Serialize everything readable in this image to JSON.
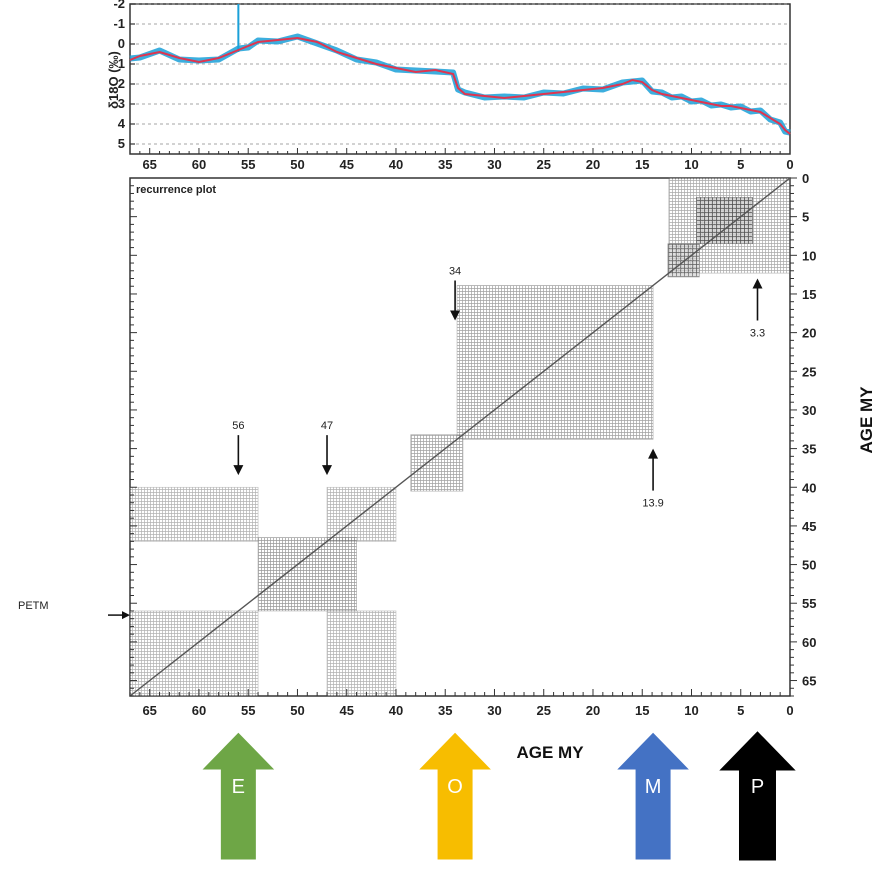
{
  "chart_data": [
    {
      "type": "line",
      "panel": "top",
      "ylabel": "δ18O (‰)",
      "x_axis": "Age (My), decreasing to the right",
      "xlim": [
        67,
        0
      ],
      "ylim": [
        5.5,
        -2
      ],
      "y_ticks": [
        -2,
        -1,
        0,
        1,
        2,
        3,
        4,
        5
      ],
      "x_ticks": [
        65,
        60,
        55,
        50,
        45,
        40,
        35,
        30,
        25,
        20,
        15,
        10,
        5,
        0
      ],
      "grid": "horizontal dashed",
      "series": [
        {
          "color": "#e0344f",
          "x": [
            67,
            66,
            64,
            62,
            60,
            58,
            56,
            55,
            54,
            52,
            50,
            48,
            46,
            44,
            42,
            40,
            38,
            36,
            34.2,
            33.7,
            33,
            31,
            29,
            27,
            25,
            23,
            21,
            19,
            17,
            16,
            15,
            14,
            13,
            12,
            11,
            10,
            9,
            8,
            7,
            6,
            5,
            4,
            3,
            2,
            1,
            0.5,
            0
          ],
          "values": [
            0.8,
            0.6,
            0.4,
            0.7,
            0.9,
            0.7,
            0.3,
            0.1,
            -0.1,
            -0.2,
            -0.3,
            -0.1,
            0.4,
            0.7,
            1.0,
            1.2,
            1.4,
            1.3,
            1.5,
            2.2,
            2.5,
            2.6,
            2.7,
            2.6,
            2.5,
            2.4,
            2.3,
            2.2,
            2.0,
            1.8,
            1.9,
            2.3,
            2.5,
            2.6,
            2.7,
            2.8,
            2.9,
            3.0,
            3.1,
            3.1,
            3.2,
            3.3,
            3.4,
            3.7,
            4.0,
            4.3,
            4.5
          ]
        },
        {
          "color": "#1aa0d8",
          "role": "raw data envelope",
          "spike": {
            "x": 56,
            "value": -2
          }
        }
      ]
    },
    {
      "type": "heatmap",
      "panel": "bottom",
      "title": "recurrence plot",
      "xlabel": "AGE MY",
      "ylabel": "AGE MY",
      "xlim": [
        67,
        0
      ],
      "ylim": [
        0,
        67
      ],
      "x_ticks": [
        65,
        60,
        55,
        50,
        45,
        40,
        35,
        30,
        25,
        20,
        15,
        10,
        5,
        0
      ],
      "y_ticks": [
        0,
        5,
        10,
        15,
        20,
        25,
        30,
        35,
        40,
        45,
        50,
        55,
        60,
        65
      ],
      "blocks": [
        {
          "x0": 12.3,
          "x1": 0,
          "y0": 0,
          "y1": 12.3,
          "density": 0.5
        },
        {
          "x0": 9.5,
          "x1": 3.8,
          "y0": 2.5,
          "y1": 8.5,
          "density": 0.8
        },
        {
          "x0": 12.4,
          "x1": 9.2,
          "y0": 8.5,
          "y1": 12.8,
          "density": 0.65
        },
        {
          "x0": 33.8,
          "x1": 13.9,
          "y0": 13.9,
          "y1": 33.8,
          "density": 0.55
        },
        {
          "x0": 38.5,
          "x1": 33.2,
          "y0": 33.2,
          "y1": 40.5,
          "density": 0.55
        },
        {
          "x0": 54,
          "x1": 44,
          "y0": 46.5,
          "y1": 56,
          "density": 0.6
        },
        {
          "x0": 67,
          "x1": 54,
          "y0": 40,
          "y1": 47,
          "density": 0.45
        },
        {
          "x0": 47,
          "x1": 40,
          "y0": 40,
          "y1": 47,
          "density": 0.45
        },
        {
          "x0": 67,
          "x1": 54,
          "y0": 56,
          "y1": 67,
          "density": 0.45
        },
        {
          "x0": 47,
          "x1": 40,
          "y0": 56,
          "y1": 67,
          "density": 0.45
        }
      ],
      "annotations": [
        {
          "label": "56",
          "x": 56,
          "y": 33,
          "direction": "down"
        },
        {
          "label": "47",
          "x": 47,
          "y": 33,
          "direction": "down"
        },
        {
          "label": "34",
          "x": 34,
          "y": 13,
          "direction": "down"
        },
        {
          "label": "13.9",
          "x": 13.9,
          "y": 35,
          "direction": "up"
        },
        {
          "label": "3.3",
          "x": 3.3,
          "y": 13,
          "direction": "up"
        },
        {
          "label": "PETM",
          "y": 55.5,
          "side": "left",
          "direction": "right"
        }
      ]
    }
  ],
  "epoch_arrows": [
    {
      "letter": "E",
      "color": "#6ea646",
      "x_age": 56
    },
    {
      "letter": "O",
      "color": "#f7bd00",
      "x_age": 34
    },
    {
      "letter": "M",
      "color": "#4472c4",
      "x_age": 13.9
    },
    {
      "letter": "P",
      "color": "#000000",
      "x_age": 3.3
    }
  ]
}
